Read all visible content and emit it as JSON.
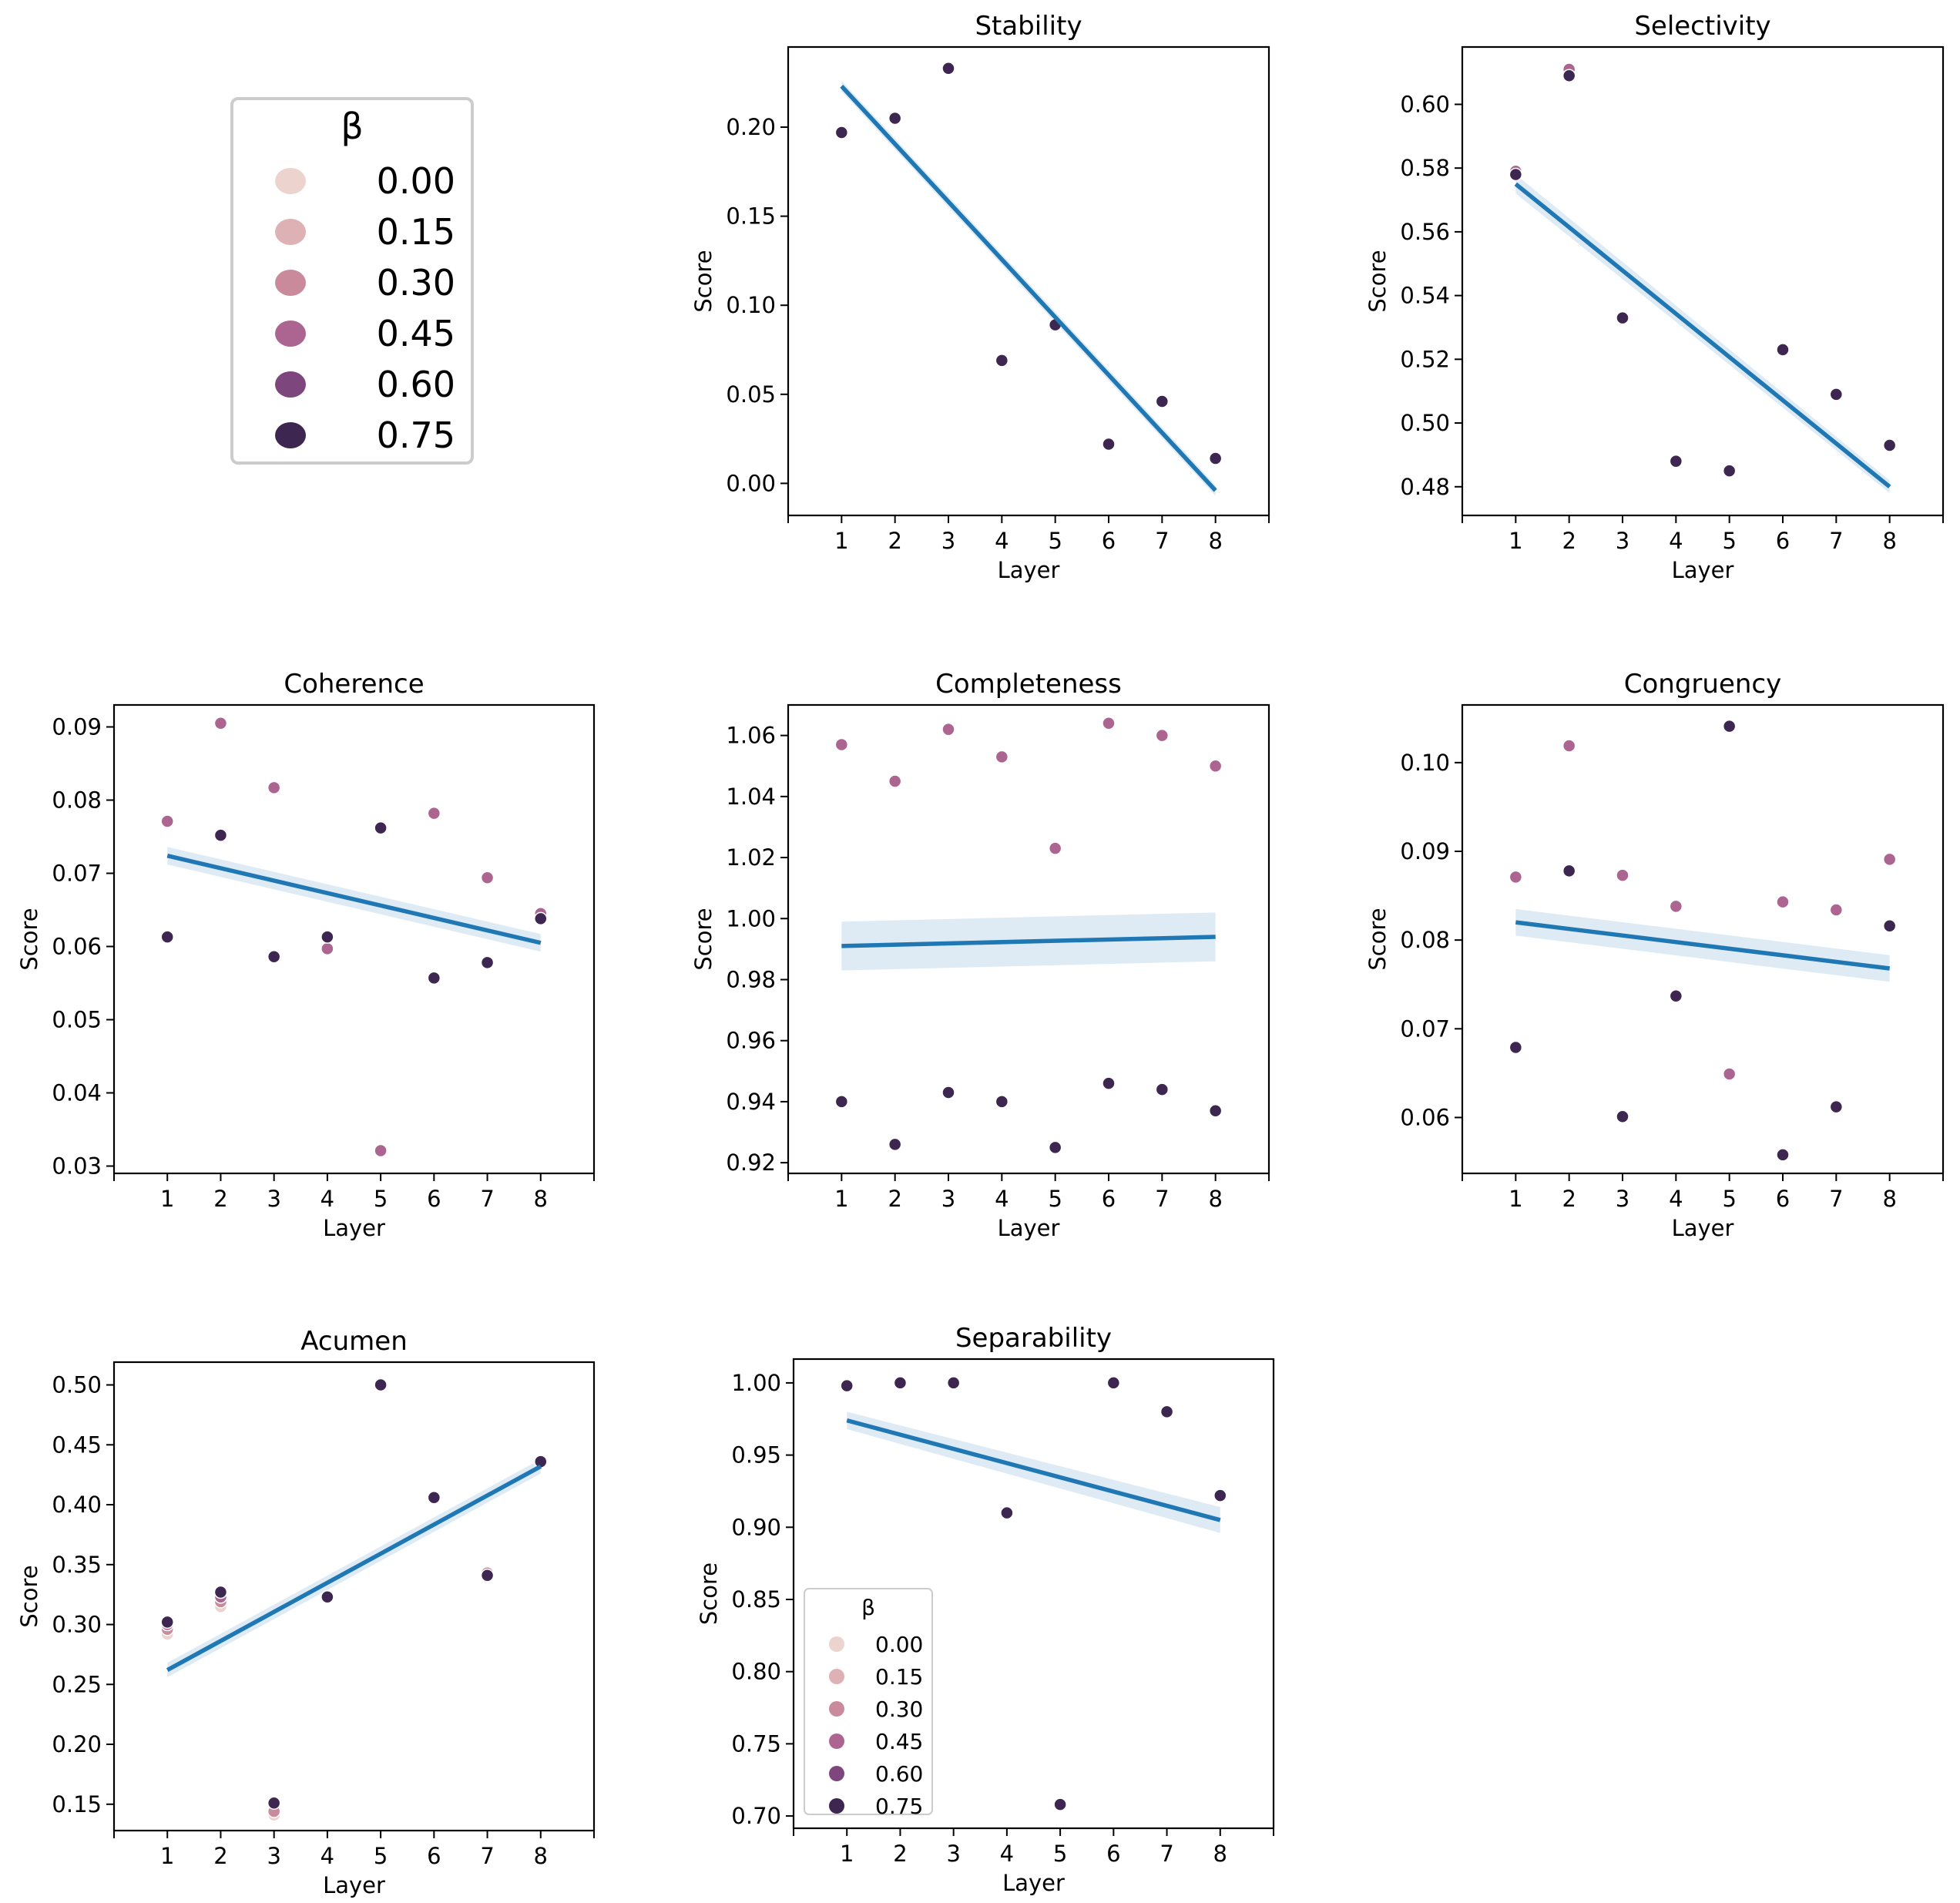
{
  "legend_main": {
    "title": "β",
    "labels": [
      "0.00",
      "0.15",
      "0.30",
      "0.45",
      "0.60",
      "0.75"
    ],
    "colors": [
      "#ecd3ce",
      "#deb2b4",
      "#c98b9c",
      "#ab6590",
      "#7d477e",
      "#3d2650"
    ]
  },
  "chart_data": [
    {
      "type": "scatter",
      "id": "stability",
      "title": "Stability",
      "xlabel": "Layer",
      "ylabel": "Score",
      "xlim": [
        0,
        9
      ],
      "ylim": [
        -0.018,
        0.245
      ],
      "xticks": [
        1,
        2,
        3,
        4,
        5,
        6,
        7,
        8
      ],
      "yticks": [
        0.0,
        0.05,
        0.1,
        0.15,
        0.2
      ],
      "ytick_labels": [
        "0.00",
        "0.05",
        "0.10",
        "0.15",
        "0.20"
      ],
      "series": [
        {
          "name": "0.75",
          "color": "#3d2650",
          "points": [
            [
              1,
              0.197
            ],
            [
              2,
              0.205
            ],
            [
              3,
              0.233
            ],
            [
              4,
              0.069
            ],
            [
              5,
              0.089
            ],
            [
              6,
              0.022
            ],
            [
              7,
              0.046
            ],
            [
              8,
              0.014
            ]
          ]
        }
      ],
      "fit": {
        "x": [
          1,
          8
        ],
        "y": [
          0.223,
          -0.004
        ],
        "ci": [
          0.003,
          0.003
        ]
      }
    },
    {
      "type": "scatter",
      "id": "selectivity",
      "title": "Selectivity",
      "xlabel": "Layer",
      "ylabel": "Score",
      "xlim": [
        0,
        9
      ],
      "ylim": [
        0.471,
        0.618
      ],
      "xticks": [
        1,
        2,
        3,
        4,
        5,
        6,
        7,
        8
      ],
      "yticks": [
        0.48,
        0.5,
        0.52,
        0.54,
        0.56,
        0.58,
        0.6
      ],
      "ytick_labels": [
        "0.48",
        "0.50",
        "0.52",
        "0.54",
        "0.56",
        "0.58",
        "0.60"
      ],
      "series": [
        {
          "name": "0.45",
          "color": "#ab6590",
          "points": [
            [
              1,
              0.579
            ],
            [
              2,
              0.611
            ]
          ]
        },
        {
          "name": "0.75",
          "color": "#3d2650",
          "points": [
            [
              1,
              0.578
            ],
            [
              2,
              0.609
            ],
            [
              3,
              0.533
            ],
            [
              4,
              0.488
            ],
            [
              5,
              0.485
            ],
            [
              6,
              0.523
            ],
            [
              7,
              0.509
            ],
            [
              8,
              0.493
            ]
          ]
        }
      ],
      "fit": {
        "x": [
          1,
          8
        ],
        "y": [
          0.575,
          0.48
        ],
        "ci": [
          0.003,
          0.002
        ]
      }
    },
    {
      "type": "scatter",
      "id": "coherence",
      "title": "Coherence",
      "xlabel": "Layer",
      "ylabel": "Score",
      "xlim": [
        0,
        9
      ],
      "ylim": [
        0.029,
        0.093
      ],
      "xticks": [
        1,
        2,
        3,
        4,
        5,
        6,
        7,
        8
      ],
      "yticks": [
        0.03,
        0.04,
        0.05,
        0.06,
        0.07,
        0.08,
        0.09
      ],
      "ytick_labels": [
        "0.03",
        "0.04",
        "0.05",
        "0.06",
        "0.07",
        "0.08",
        "0.09"
      ],
      "series": [
        {
          "name": "0.45",
          "color": "#ab6590",
          "points": [
            [
              1,
              0.0771
            ],
            [
              2,
              0.0905
            ],
            [
              3,
              0.0817
            ],
            [
              4,
              0.0597
            ],
            [
              5,
              0.0321
            ],
            [
              6,
              0.0782
            ],
            [
              7,
              0.0694
            ],
            [
              8,
              0.0645
            ]
          ]
        },
        {
          "name": "0.75",
          "color": "#3d2650",
          "points": [
            [
              1,
              0.0613
            ],
            [
              2,
              0.0752
            ],
            [
              3,
              0.0586
            ],
            [
              4,
              0.0613
            ],
            [
              5,
              0.0762
            ],
            [
              6,
              0.0557
            ],
            [
              7,
              0.0578
            ],
            [
              8,
              0.0638
            ]
          ]
        }
      ],
      "fit": {
        "x": [
          1,
          8
        ],
        "y": [
          0.0724,
          0.0605
        ],
        "ci": [
          0.0012,
          0.0012
        ]
      }
    },
    {
      "type": "scatter",
      "id": "completeness",
      "title": "Completeness",
      "xlabel": "Layer",
      "ylabel": "Score",
      "xlim": [
        0,
        9
      ],
      "ylim": [
        0.9165,
        1.07
      ],
      "xticks": [
        1,
        2,
        3,
        4,
        5,
        6,
        7,
        8
      ],
      "yticks": [
        0.92,
        0.94,
        0.96,
        0.98,
        1.0,
        1.02,
        1.04,
        1.06
      ],
      "ytick_labels": [
        "0.92",
        "0.94",
        "0.96",
        "0.98",
        "1.00",
        "1.02",
        "1.04",
        "1.06"
      ],
      "series": [
        {
          "name": "0.45",
          "color": "#ab6590",
          "points": [
            [
              1,
              1.057
            ],
            [
              2,
              1.045
            ],
            [
              3,
              1.062
            ],
            [
              4,
              1.053
            ],
            [
              5,
              1.023
            ],
            [
              6,
              1.064
            ],
            [
              7,
              1.06
            ],
            [
              8,
              1.05
            ]
          ]
        },
        {
          "name": "0.75",
          "color": "#3d2650",
          "points": [
            [
              1,
              0.94
            ],
            [
              2,
              0.926
            ],
            [
              3,
              0.943
            ],
            [
              4,
              0.94
            ],
            [
              5,
              0.925
            ],
            [
              6,
              0.946
            ],
            [
              7,
              0.944
            ],
            [
              8,
              0.937
            ]
          ]
        }
      ],
      "fit": {
        "x": [
          1,
          8
        ],
        "y": [
          0.991,
          0.994
        ],
        "ci": [
          0.008,
          0.008
        ]
      }
    },
    {
      "type": "scatter",
      "id": "congruency",
      "title": "Congruency",
      "xlabel": "Layer",
      "ylabel": "Score",
      "xlim": [
        0,
        9
      ],
      "ylim": [
        0.0537,
        0.1065
      ],
      "xticks": [
        1,
        2,
        3,
        4,
        5,
        6,
        7,
        8
      ],
      "yticks": [
        0.06,
        0.07,
        0.08,
        0.09,
        0.1
      ],
      "ytick_labels": [
        "0.06",
        "0.07",
        "0.08",
        "0.09",
        "0.10"
      ],
      "series": [
        {
          "name": "0.45",
          "color": "#ab6590",
          "points": [
            [
              1,
              0.0871
            ],
            [
              2,
              0.1019
            ],
            [
              3,
              0.0873
            ],
            [
              4,
              0.0838
            ],
            [
              5,
              0.0649
            ],
            [
              6,
              0.0843
            ],
            [
              7,
              0.0834
            ],
            [
              8,
              0.0891
            ]
          ]
        },
        {
          "name": "0.75",
          "color": "#3d2650",
          "points": [
            [
              1,
              0.0679
            ],
            [
              2,
              0.0878
            ],
            [
              3,
              0.0601
            ],
            [
              4,
              0.0737
            ],
            [
              5,
              0.1041
            ],
            [
              6,
              0.0558
            ],
            [
              7,
              0.0612
            ],
            [
              8,
              0.0816
            ]
          ]
        }
      ],
      "fit": {
        "x": [
          1,
          8
        ],
        "y": [
          0.082,
          0.0768
        ],
        "ci": [
          0.0015,
          0.0015
        ]
      }
    },
    {
      "type": "scatter",
      "id": "acumen",
      "title": "Acumen",
      "xlabel": "Layer",
      "ylabel": "Score",
      "xlim": [
        0,
        9
      ],
      "ylim": [
        0.128,
        0.519
      ],
      "xticks": [
        1,
        2,
        3,
        4,
        5,
        6,
        7,
        8
      ],
      "yticks": [
        0.15,
        0.2,
        0.25,
        0.3,
        0.35,
        0.4,
        0.45,
        0.5
      ],
      "ytick_labels": [
        "0.15",
        "0.20",
        "0.25",
        "0.30",
        "0.35",
        "0.40",
        "0.45",
        "0.50"
      ],
      "series": [
        {
          "name": "0.00",
          "color": "#ecd3ce",
          "points": [
            [
              1,
              0.292
            ],
            [
              2,
              0.315
            ],
            [
              3,
              0.141
            ]
          ]
        },
        {
          "name": "0.30",
          "color": "#c98b9c",
          "points": [
            [
              1,
              0.296
            ],
            [
              2,
              0.319
            ],
            [
              3,
              0.144
            ],
            [
              7,
              0.343
            ]
          ]
        },
        {
          "name": "0.45",
          "color": "#ab6590",
          "points": [
            [
              1,
              0.3
            ],
            [
              2,
              0.323
            ],
            [
              5,
              0.501
            ]
          ]
        },
        {
          "name": "0.75",
          "color": "#3d2650",
          "points": [
            [
              1,
              0.302
            ],
            [
              2,
              0.327
            ],
            [
              3,
              0.151
            ],
            [
              4,
              0.323
            ],
            [
              5,
              0.5
            ],
            [
              6,
              0.406
            ],
            [
              7,
              0.341
            ],
            [
              8,
              0.436
            ]
          ]
        }
      ],
      "fit": {
        "x": [
          1,
          8
        ],
        "y": [
          0.262,
          0.432
        ],
        "ci": [
          0.006,
          0.006
        ]
      }
    },
    {
      "type": "scatter",
      "id": "separability",
      "title": "Separability",
      "xlabel": "Layer",
      "ylabel": "Score",
      "xlim": [
        0,
        9
      ],
      "ylim": [
        0.6915,
        1.0165
      ],
      "xticks": [
        1,
        2,
        3,
        4,
        5,
        6,
        7,
        8
      ],
      "yticks": [
        0.7,
        0.75,
        0.8,
        0.85,
        0.9,
        0.95,
        1.0
      ],
      "ytick_labels": [
        "0.70",
        "0.75",
        "0.80",
        "0.85",
        "0.90",
        "0.95",
        "1.00"
      ],
      "series": [
        {
          "name": "0.75",
          "color": "#3d2650",
          "points": [
            [
              1,
              0.998
            ],
            [
              2,
              1.0
            ],
            [
              3,
              1.0
            ],
            [
              4,
              0.91
            ],
            [
              5,
              0.708
            ],
            [
              6,
              1.0
            ],
            [
              7,
              0.98
            ],
            [
              8,
              0.922
            ]
          ]
        }
      ],
      "fit": {
        "x": [
          1,
          8
        ],
        "y": [
          0.974,
          0.905
        ],
        "ci": [
          0.006,
          0.009
        ]
      },
      "legend": {
        "title": "β",
        "placement": "lower-left",
        "labels": [
          "0.00",
          "0.15",
          "0.30",
          "0.45",
          "0.60",
          "0.75"
        ],
        "colors": [
          "#ecd3ce",
          "#deb2b4",
          "#c98b9c",
          "#ab6590",
          "#7d477e",
          "#3d2650"
        ]
      }
    }
  ]
}
